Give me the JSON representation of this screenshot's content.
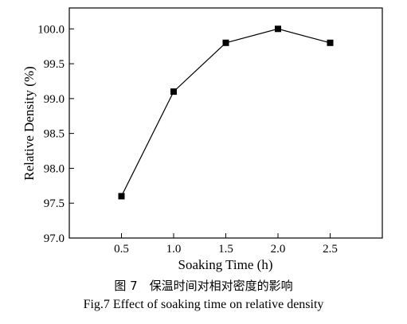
{
  "chart_data": {
    "type": "line",
    "xlabel": "Soaking Time (h)",
    "ylabel": "Relative Density (%)",
    "xlim": [
      0,
      3.0
    ],
    "ylim": [
      97.0,
      100.3
    ],
    "x_ticks": [
      "0.5",
      "1.0",
      "1.5",
      "2.0",
      "2.5"
    ],
    "y_ticks": [
      "97.0",
      "97.5",
      "98.0",
      "98.5",
      "99.0",
      "99.5",
      "100.0"
    ],
    "series": [
      {
        "x": [
          0.5,
          1.0,
          1.5,
          2.0,
          2.5
        ],
        "values": [
          97.6,
          99.1,
          99.8,
          100.0,
          99.8
        ],
        "marker": "square",
        "color": "#000000"
      }
    ],
    "grid": false
  },
  "caption": {
    "cn": "图 7　保温时间对相对密度的影响",
    "en": "Fig.7 Effect of soaking time on relative density"
  }
}
